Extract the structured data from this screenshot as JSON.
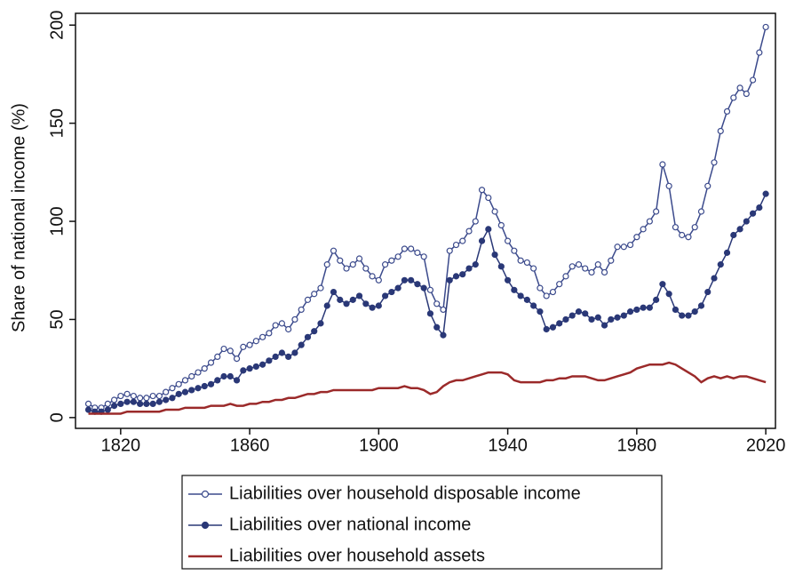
{
  "chart_data": {
    "type": "line",
    "ylabel": "Share of national income (%)",
    "x": [
      1810,
      1812,
      1814,
      1816,
      1818,
      1820,
      1822,
      1824,
      1826,
      1828,
      1830,
      1832,
      1834,
      1836,
      1838,
      1840,
      1842,
      1844,
      1846,
      1848,
      1850,
      1852,
      1854,
      1856,
      1858,
      1860,
      1862,
      1864,
      1866,
      1868,
      1870,
      1872,
      1874,
      1876,
      1878,
      1880,
      1882,
      1884,
      1886,
      1888,
      1890,
      1892,
      1894,
      1896,
      1898,
      1900,
      1902,
      1904,
      1906,
      1908,
      1910,
      1912,
      1914,
      1916,
      1918,
      1920,
      1922,
      1924,
      1926,
      1928,
      1930,
      1932,
      1934,
      1936,
      1938,
      1940,
      1942,
      1944,
      1946,
      1948,
      1950,
      1952,
      1954,
      1956,
      1958,
      1960,
      1962,
      1964,
      1966,
      1968,
      1970,
      1972,
      1974,
      1976,
      1978,
      1980,
      1982,
      1984,
      1986,
      1988,
      1990,
      1992,
      1994,
      1996,
      1998,
      2000,
      2002,
      2004,
      2006,
      2008,
      2010,
      2012,
      2014,
      2016,
      2018,
      2020
    ],
    "series": [
      {
        "name": "Liabilities over household disposable income",
        "color": "#3b4a8c",
        "marker": "open",
        "values": [
          7,
          5,
          5,
          7,
          9,
          11,
          12,
          11,
          10,
          10,
          11,
          11,
          13,
          15,
          17,
          19,
          21,
          23,
          25,
          28,
          31,
          35,
          34,
          30,
          36,
          37,
          39,
          41,
          43,
          47,
          48,
          45,
          50,
          55,
          60,
          63,
          66,
          78,
          85,
          80,
          76,
          78,
          81,
          76,
          72,
          70,
          78,
          80,
          82,
          86,
          86,
          84,
          82,
          65,
          58,
          55,
          85,
          88,
          90,
          95,
          100,
          116,
          112,
          105,
          98,
          90,
          85,
          80,
          79,
          76,
          66,
          62,
          64,
          68,
          72,
          77,
          78,
          76,
          74,
          78,
          74,
          80,
          87,
          87,
          88,
          92,
          96,
          100,
          105,
          129,
          118,
          97,
          93,
          92,
          97,
          105,
          118,
          130,
          146,
          156,
          163,
          168,
          165,
          172,
          186,
          199
        ]
      },
      {
        "name": "Liabilities over national income",
        "color": "#2a3877",
        "marker": "filled",
        "values": [
          4,
          3,
          3,
          4,
          6,
          7,
          8,
          8,
          7,
          7,
          7,
          8,
          9,
          10,
          12,
          13,
          14,
          15,
          16,
          17,
          19,
          21,
          21,
          19,
          24,
          25,
          26,
          27,
          29,
          31,
          33,
          31,
          33,
          37,
          41,
          44,
          48,
          57,
          64,
          60,
          58,
          60,
          62,
          58,
          56,
          57,
          62,
          64,
          66,
          70,
          70,
          68,
          66,
          53,
          46,
          42,
          70,
          72,
          73,
          76,
          78,
          90,
          96,
          83,
          77,
          70,
          65,
          62,
          60,
          57,
          54,
          45,
          46,
          48,
          50,
          52,
          54,
          53,
          50,
          51,
          47,
          50,
          51,
          52,
          54,
          55,
          56,
          56,
          60,
          68,
          63,
          55,
          52,
          52,
          54,
          57,
          64,
          71,
          78,
          84,
          93,
          96,
          100,
          104,
          107,
          114
        ]
      },
      {
        "name": "Liabilities over household assets",
        "color": "#9b2a2a",
        "marker": "none",
        "values": [
          2,
          2,
          2,
          2,
          2,
          2,
          3,
          3,
          3,
          3,
          3,
          3,
          4,
          4,
          4,
          5,
          5,
          5,
          5,
          6,
          6,
          6,
          7,
          6,
          6,
          7,
          7,
          8,
          8,
          9,
          9,
          10,
          10,
          11,
          12,
          12,
          13,
          13,
          14,
          14,
          14,
          14,
          14,
          14,
          14,
          15,
          15,
          15,
          15,
          16,
          15,
          15,
          14,
          12,
          13,
          16,
          18,
          19,
          19,
          20,
          21,
          22,
          23,
          23,
          23,
          22,
          19,
          18,
          18,
          18,
          18,
          19,
          19,
          20,
          20,
          21,
          21,
          21,
          20,
          19,
          19,
          20,
          21,
          22,
          23,
          25,
          26,
          27,
          27,
          27,
          28,
          27,
          25,
          23,
          21,
          18,
          20,
          21,
          20,
          21,
          20,
          21,
          21,
          20,
          19,
          18
        ]
      }
    ],
    "xlim": [
      1806,
      2023
    ],
    "xticks": [
      1820,
      1860,
      1900,
      1940,
      1980,
      2020
    ],
    "ylim": [
      -5.5,
      206
    ],
    "yticks": [
      0,
      50,
      100,
      150,
      200
    ],
    "grid": false,
    "legend": "bottom"
  }
}
